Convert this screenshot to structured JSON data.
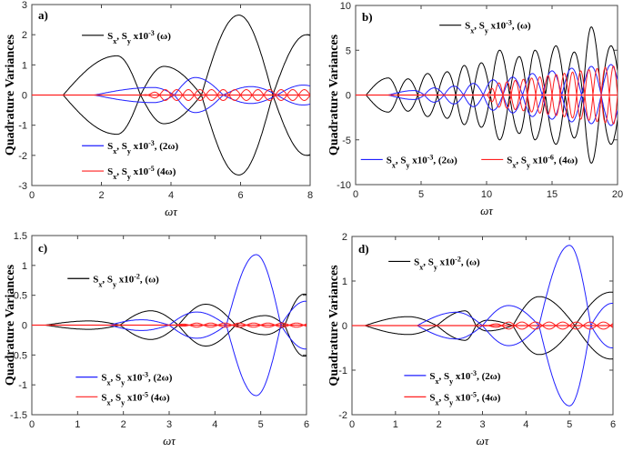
{
  "figure": {
    "ylabel": "Quadrature Variances",
    "xlabel": "ωτ"
  },
  "chart_data": [
    {
      "type": "line",
      "panel_label": "a)",
      "xlabel": "ωτ",
      "ylabel": "Quadrature Variances",
      "xlim": [
        0,
        8
      ],
      "ylim": [
        -3,
        3
      ],
      "xticks": [
        0,
        2,
        4,
        6,
        8
      ],
      "yticks": [
        -3,
        -2,
        -1,
        0,
        1,
        2,
        3
      ],
      "grid": false,
      "series": [
        {
          "name": "Sx, Sy x10^-3 (ω)",
          "color": "#000000",
          "pattern": "envelope",
          "peaks": [
            [
              2.45,
              1.3
            ],
            [
              3.8,
              0.95
            ],
            [
              5.95,
              2.65
            ],
            [
              7.9,
              2.0
            ]
          ],
          "onset": 0.9
        },
        {
          "name": "Sx, Sy x10^-3 (2ω)",
          "color": "#1f1fff",
          "pattern": "envelope",
          "peaks": [
            [
              3.5,
              0.25
            ],
            [
              4.7,
              0.58
            ],
            [
              6.3,
              0.28
            ],
            [
              7.8,
              0.33
            ]
          ],
          "onset": 1.8
        },
        {
          "name": "Sx, Sy x10^-5 (4ω)",
          "color": "#ff2020",
          "pattern": "oscillation",
          "amp": 0.18,
          "freq": 3.0,
          "onset": 3.2
        }
      ],
      "legend_labels": [
        {
          "prefix": "S",
          "sub1": "x",
          "mid": ", S",
          "sub2": "y",
          "pre": " x10",
          "sup": "-3",
          "post": " (ω)"
        },
        {
          "prefix": "S",
          "sub1": "x",
          "mid": ", S",
          "sub2": "y",
          "pre": " x10",
          "sup": "-3",
          "post": ", (2ω)"
        },
        {
          "prefix": "S",
          "sub1": "x",
          "mid": ", S",
          "sub2": "y",
          "pre": " x10",
          "sup": "-5",
          "post": " (4ω)"
        }
      ]
    },
    {
      "type": "line",
      "panel_label": "b)",
      "xlabel": "ωτ",
      "ylabel": "Quadrature Variances",
      "xlim": [
        0,
        20
      ],
      "ylim": [
        -10,
        10
      ],
      "xticks": [
        0,
        5,
        10,
        15,
        20
      ],
      "yticks": [
        -10,
        -5,
        0,
        5,
        10
      ],
      "grid": false,
      "series": [
        {
          "name": "Sx, Sy x10^-3 (ω)",
          "color": "#000000",
          "pattern": "envelope",
          "peaks": [
            [
              2.5,
              1.9
            ],
            [
              4.0,
              1.8
            ],
            [
              5.5,
              2.4
            ],
            [
              7.0,
              2.6
            ],
            [
              8.3,
              3.3
            ],
            [
              9.6,
              3.6
            ],
            [
              11.0,
              5.0
            ],
            [
              12.5,
              4.3
            ],
            [
              13.7,
              5.0
            ],
            [
              15.3,
              5.5
            ],
            [
              16.7,
              4.8
            ],
            [
              18.0,
              7.6
            ],
            [
              19.5,
              5.5
            ]
          ],
          "onset": 0.8
        },
        {
          "name": "Sx, Sy x10^-3 (2ω)",
          "color": "#1f1fff",
          "pattern": "envelope",
          "peaks": [
            [
              4.5,
              0.5
            ],
            [
              6.0,
              0.8
            ],
            [
              7.5,
              1.0
            ],
            [
              9.0,
              1.3
            ],
            [
              10.5,
              1.7
            ],
            [
              12.0,
              2.0
            ],
            [
              13.5,
              2.4
            ],
            [
              15.0,
              2.7
            ],
            [
              16.5,
              3.0
            ],
            [
              18.0,
              3.2
            ],
            [
              19.5,
              3.4
            ]
          ],
          "onset": 2.5
        },
        {
          "name": "Sx, Sy x10^-6 (4ω)",
          "color": "#ff2020",
          "pattern": "oscillation",
          "amp": 3.3,
          "freq": 1.6,
          "onset": 10.0,
          "grow": true
        }
      ],
      "legend_labels": [
        {
          "prefix": "S",
          "sub1": "x",
          "mid": ", S",
          "sub2": "y",
          "pre": " x10",
          "sup": "-3",
          "post": ", (ω)"
        },
        {
          "prefix": "S",
          "sub1": "x",
          "mid": ", S",
          "sub2": "y",
          "pre": " x10",
          "sup": "-3",
          "post": ", (2ω)"
        },
        {
          "prefix": "S",
          "sub1": "x",
          "mid": ", S",
          "sub2": "y",
          "pre": " x10",
          "sup": "-6",
          "post": ", (4ω)"
        }
      ]
    },
    {
      "type": "line",
      "panel_label": "c)",
      "xlabel": "ωτ",
      "ylabel": "Quadrature Variances",
      "xlim": [
        0,
        6
      ],
      "ylim": [
        -1.5,
        1.5
      ],
      "xticks": [
        0,
        1,
        2,
        3,
        4,
        5,
        6
      ],
      "yticks": [
        -1.5,
        -1,
        -0.5,
        0,
        0.5,
        1,
        1.5
      ],
      "grid": false,
      "series": [
        {
          "name": "Sx, Sy x10^-2 (ω)",
          "color": "#000000",
          "pattern": "envelope",
          "peaks": [
            [
              1.25,
              0.07
            ],
            [
              2.6,
              0.24
            ],
            [
              3.8,
              0.35
            ],
            [
              5.1,
              0.16
            ],
            [
              5.95,
              0.52
            ]
          ],
          "onset": 0.3
        },
        {
          "name": "Sx, Sy x10^-3 (2ω)",
          "color": "#1f1fff",
          "pattern": "envelope",
          "peaks": [
            [
              2.4,
              0.09
            ],
            [
              3.6,
              0.22
            ],
            [
              4.9,
              1.18
            ],
            [
              5.98,
              0.4
            ]
          ],
          "onset": 1.7
        },
        {
          "name": "Sx, Sy x10^-5 (4ω)",
          "color": "#ff2020",
          "pattern": "oscillation",
          "amp": 0.035,
          "freq": 3.2,
          "onset": 3.0
        }
      ],
      "legend_labels": [
        {
          "prefix": "S",
          "sub1": "x",
          "mid": ", S",
          "sub2": "y",
          "pre": " x10",
          "sup": "-2",
          "post": ", (ω)"
        },
        {
          "prefix": "S",
          "sub1": "x",
          "mid": ", S",
          "sub2": "y",
          "pre": " x10",
          "sup": "-3",
          "post": ", (2ω)"
        },
        {
          "prefix": "S",
          "sub1": "x",
          "mid": ", S",
          "sub2": "y",
          "pre": " x10",
          "sup": "-5",
          "post": " (4ω)"
        }
      ]
    },
    {
      "type": "line",
      "panel_label": "d)",
      "xlabel": "ωτ",
      "ylabel": "Quadrature Variances",
      "xlim": [
        0,
        6
      ],
      "ylim": [
        -2,
        2
      ],
      "xticks": [
        0,
        1,
        2,
        3,
        4,
        5,
        6
      ],
      "yticks": [
        -2,
        -1,
        0,
        1,
        2
      ],
      "grid": false,
      "series": [
        {
          "name": "Sx, Sy x10^-2 (ω)",
          "color": "#000000",
          "pattern": "envelope",
          "peaks": [
            [
              1.3,
              0.2
            ],
            [
              2.6,
              0.33
            ],
            [
              3.1,
              0.12
            ],
            [
              4.3,
              0.65
            ],
            [
              5.95,
              0.75
            ]
          ],
          "onset": 0.3
        },
        {
          "name": "Sx, Sy x10^-3 (2ω)",
          "color": "#1f1fff",
          "pattern": "envelope",
          "peaks": [
            [
              2.4,
              0.3
            ],
            [
              3.6,
              0.45
            ],
            [
              5.0,
              1.8
            ],
            [
              5.98,
              0.5
            ]
          ],
          "onset": 1.5
        },
        {
          "name": "Sx, Sy x10^-5 (4ω)",
          "color": "#ff2020",
          "pattern": "oscillation",
          "amp": 0.08,
          "freq": 3.2,
          "onset": 3.0
        }
      ],
      "legend_labels": [
        {
          "prefix": "S",
          "sub1": "x",
          "mid": ", S",
          "sub2": "y",
          "pre": " x10",
          "sup": "-2",
          "post": ", (ω)"
        },
        {
          "prefix": "S",
          "sub1": "x",
          "mid": ", S",
          "sub2": "y",
          "pre": " x10",
          "sup": "-3",
          "post": ", (2ω)"
        },
        {
          "prefix": "S",
          "sub1": "x",
          "mid": ", S",
          "sub2": "y",
          "pre": " x10",
          "sup": "-5",
          "post": ", (4ω)"
        }
      ]
    }
  ]
}
